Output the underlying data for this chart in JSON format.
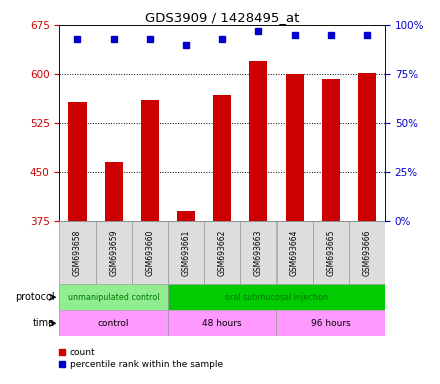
{
  "title": "GDS3909 / 1428495_at",
  "samples": [
    "GSM693658",
    "GSM693659",
    "GSM693660",
    "GSM693661",
    "GSM693662",
    "GSM693663",
    "GSM693664",
    "GSM693665",
    "GSM693666"
  ],
  "counts": [
    557,
    465,
    560,
    390,
    568,
    620,
    600,
    592,
    602
  ],
  "percentile_ranks": [
    93,
    93,
    93,
    90,
    93,
    97,
    95,
    95,
    95
  ],
  "ylim_left": [
    375,
    675
  ],
  "ylim_right": [
    0,
    100
  ],
  "yticks_left": [
    375,
    450,
    525,
    600,
    675
  ],
  "yticks_right": [
    0,
    25,
    50,
    75,
    100
  ],
  "bar_color": "#cc0000",
  "dot_color": "#0000cc",
  "protocol_groups": [
    {
      "label": "unmanipulated control",
      "start": 0,
      "end": 3,
      "color": "#90ee90"
    },
    {
      "label": "oral submucosal injection",
      "start": 3,
      "end": 9,
      "color": "#00cc00"
    }
  ],
  "time_groups": [
    {
      "label": "control",
      "start": 0,
      "end": 3,
      "color": "#ff99ff"
    },
    {
      "label": "48 hours",
      "start": 3,
      "end": 6,
      "color": "#ff99ff"
    },
    {
      "label": "96 hours",
      "start": 6,
      "end": 9,
      "color": "#ff99ff"
    }
  ],
  "left_axis_color": "#cc0000",
  "right_axis_color": "#0000cc",
  "background_color": "#ffffff",
  "plot_bg_color": "#ffffff",
  "grid_color": "#000000",
  "label_count": "count",
  "label_percentile": "percentile rank within the sample"
}
